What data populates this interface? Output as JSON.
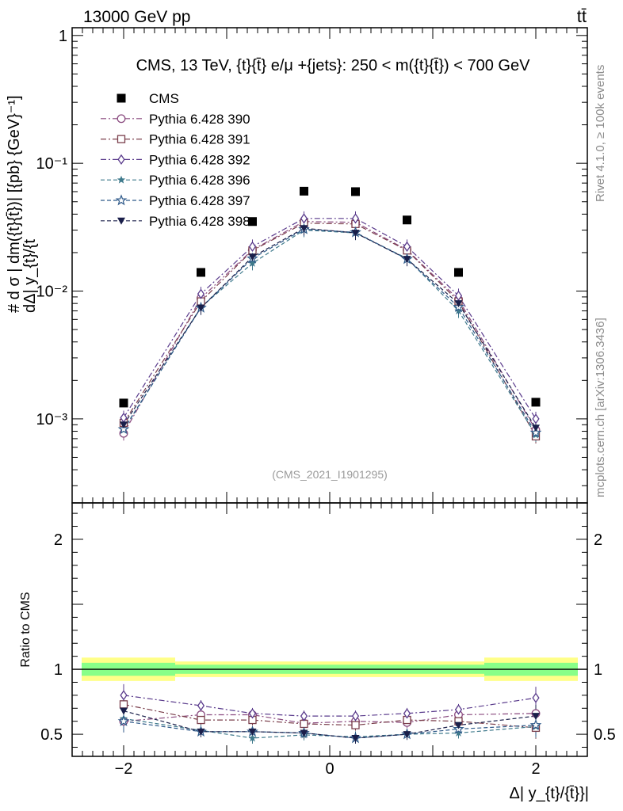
{
  "header": {
    "left": "13000 GeV pp",
    "right": "tt̄"
  },
  "side_text": {
    "rivet": "Rivet 4.1.0, ≥ 100k events",
    "mcplots": "mcplots.cern.ch [arXiv:1306.3436]"
  },
  "chart_data": [
    {
      "type": "scatter",
      "panel": "main",
      "title": "CMS, 13 TeV, {t}{t̄} e/μ +{jets}: 250 < m({t}{t̄}) < 700 GeV",
      "watermark": "(CMS_2021_I1901295)",
      "ylabel_top": "# d σ   | dm({t}{t̄})| [{pb} {GeV}⁻¹]",
      "ylabel_bottom": "dΔ| y_{t}/{t",
      "xlabel": "Δ| y_{t}/{t̄}}|",
      "yscale": "log",
      "xlim": [
        -2.5,
        2.5
      ],
      "ylim": [
        0.00022,
        1.15
      ],
      "ytick_labels": [
        "10⁻³",
        "10⁻²",
        "10⁻¹",
        "1"
      ],
      "xtick_labels": [
        "−2",
        "0",
        "2"
      ],
      "x": [
        -2.0,
        -1.25,
        -0.75,
        -0.25,
        0.25,
        0.75,
        1.25,
        2.0
      ],
      "series": [
        {
          "name": "CMS",
          "color": "#000000",
          "marker": "square-filled",
          "dash": "none",
          "values": [
            0.00133,
            0.014,
            0.035,
            0.0605,
            0.06,
            0.036,
            0.014,
            0.00135
          ]
        },
        {
          "name": "Pythia 6.428 390",
          "color": "#8a4a7f",
          "marker": "circle-open",
          "dash": "dashdot",
          "values": [
            0.00077,
            0.0088,
            0.021,
            0.035,
            0.0345,
            0.021,
            0.0086,
            0.00082
          ]
        },
        {
          "name": "Pythia 6.428 391",
          "color": "#7a3e4b",
          "marker": "square-open",
          "dash": "dashdot",
          "values": [
            0.00093,
            0.0083,
            0.0208,
            0.034,
            0.0335,
            0.0208,
            0.0083,
            0.00073
          ]
        },
        {
          "name": "Pythia 6.428 392",
          "color": "#5a3b8c",
          "marker": "diamond-open",
          "dash": "dashdot",
          "values": [
            0.00102,
            0.0095,
            0.0223,
            0.037,
            0.037,
            0.0223,
            0.0092,
            0.001
          ]
        },
        {
          "name": "Pythia 6.428 396",
          "color": "#3f7a8c",
          "marker": "star-filled",
          "dash": "dashed",
          "values": [
            0.00082,
            0.0075,
            0.0165,
            0.03,
            0.0285,
            0.018,
            0.007,
            0.00075
          ]
        },
        {
          "name": "Pythia 6.428 397",
          "color": "#2f5a8a",
          "marker": "star-open",
          "dash": "dashed",
          "values": [
            0.00083,
            0.0074,
            0.018,
            0.0305,
            0.0288,
            0.0178,
            0.0075,
            0.00078
          ]
        },
        {
          "name": "Pythia 6.428 398",
          "color": "#1a1f4a",
          "marker": "triangle-down-filled",
          "dash": "dashed",
          "values": [
            0.0009,
            0.0074,
            0.0185,
            0.031,
            0.0285,
            0.0178,
            0.008,
            0.00085
          ]
        }
      ]
    },
    {
      "type": "scatter",
      "panel": "ratio",
      "ylabel": "Ratio to CMS",
      "xlim": [
        -2.5,
        2.5
      ],
      "ylim": [
        0.33,
        2.28
      ],
      "ytick_labels": [
        "0.5",
        "1",
        "2"
      ],
      "band_edges": [
        -2.5,
        -1.5,
        1.5,
        2.5
      ],
      "band_green": [
        0.05,
        0.035,
        0.05
      ],
      "band_yellow": [
        0.09,
        0.06,
        0.09
      ],
      "x": [
        -2.0,
        -1.25,
        -0.75,
        -0.25,
        0.25,
        0.75,
        1.25,
        2.0
      ],
      "series": [
        {
          "name": "Pythia 6.428 390",
          "values": [
            0.6,
            0.65,
            0.65,
            0.585,
            0.6,
            0.59,
            0.65,
            0.66
          ]
        },
        {
          "name": "Pythia 6.428 391",
          "values": [
            0.73,
            0.61,
            0.61,
            0.58,
            0.57,
            0.61,
            0.6,
            0.55
          ]
        },
        {
          "name": "Pythia 6.428 392",
          "values": [
            0.8,
            0.72,
            0.66,
            0.64,
            0.64,
            0.66,
            0.69,
            0.78
          ]
        },
        {
          "name": "Pythia 6.428 396",
          "values": [
            0.62,
            0.53,
            0.47,
            0.495,
            0.48,
            0.5,
            0.51,
            0.56
          ]
        },
        {
          "name": "Pythia 6.428 397",
          "values": [
            0.6,
            0.52,
            0.52,
            0.51,
            0.47,
            0.5,
            0.54,
            0.57
          ]
        },
        {
          "name": "Pythia 6.428 398",
          "values": [
            0.68,
            0.52,
            0.52,
            0.51,
            0.47,
            0.5,
            0.57,
            0.64
          ]
        }
      ]
    }
  ]
}
